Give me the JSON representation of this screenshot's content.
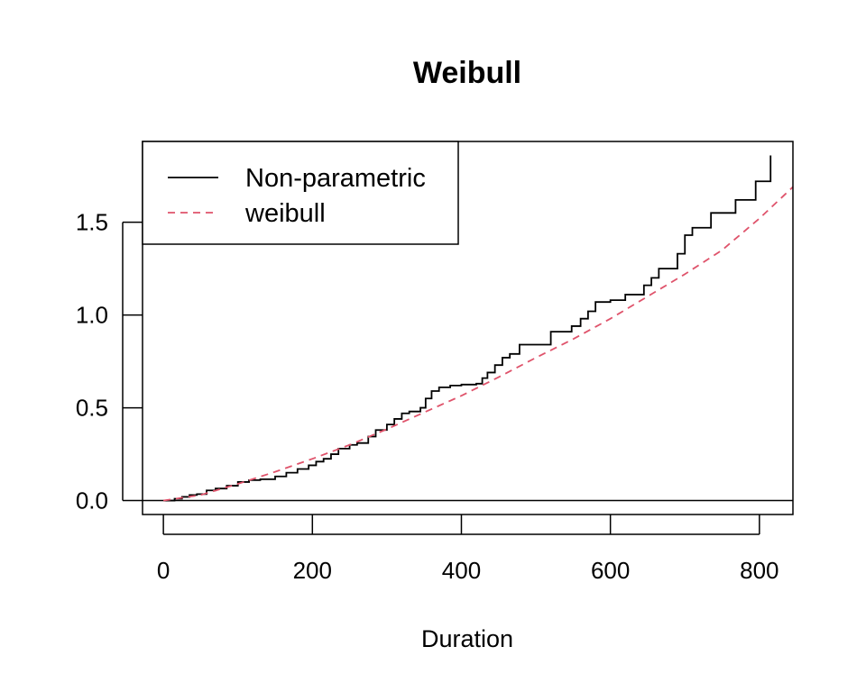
{
  "chart_data": {
    "type": "line",
    "title": "Weibull",
    "xlabel": "Duration",
    "ylabel": "",
    "xlim": [
      -28,
      845
    ],
    "ylim": [
      -0.075,
      1.935
    ],
    "x_ticks": [
      0,
      200,
      400,
      600,
      800
    ],
    "x_tick_labels": [
      "0",
      "200",
      "400",
      "600",
      "800"
    ],
    "y_ticks": [
      0.0,
      0.5,
      1.0,
      1.5
    ],
    "y_tick_labels": [
      "0.0",
      "0.5",
      "1.0",
      "1.5"
    ],
    "reference_line_y": 0,
    "legend": {
      "placement": "top-left",
      "entries": [
        "Non-parametric",
        "weibull"
      ]
    },
    "series": [
      {
        "name": "Non-parametric",
        "style": "step",
        "color": "#000000",
        "x": [
          0,
          15,
          25,
          35,
          45,
          58,
          70,
          85,
          100,
          115,
          130,
          150,
          165,
          180,
          195,
          205,
          215,
          225,
          235,
          250,
          260,
          275,
          285,
          300,
          310,
          320,
          330,
          345,
          352,
          360,
          370,
          385,
          400,
          420,
          428,
          435,
          445,
          455,
          465,
          478,
          500,
          520,
          548,
          560,
          570,
          580,
          600,
          620,
          645,
          655,
          665,
          690,
          700,
          710,
          735,
          768,
          795,
          815
        ],
        "y": [
          0,
          0.01,
          0.02,
          0.03,
          0.035,
          0.055,
          0.065,
          0.08,
          0.1,
          0.11,
          0.115,
          0.13,
          0.15,
          0.17,
          0.19,
          0.21,
          0.225,
          0.25,
          0.28,
          0.3,
          0.31,
          0.345,
          0.38,
          0.41,
          0.44,
          0.47,
          0.48,
          0.5,
          0.55,
          0.59,
          0.61,
          0.62,
          0.625,
          0.63,
          0.66,
          0.69,
          0.73,
          0.77,
          0.79,
          0.84,
          0.84,
          0.91,
          0.94,
          0.98,
          1.02,
          1.07,
          1.08,
          1.11,
          1.16,
          1.2,
          1.25,
          1.33,
          1.43,
          1.47,
          1.55,
          1.62,
          1.72,
          1.86
        ]
      },
      {
        "name": "weibull",
        "style": "dashed",
        "color": "#df536b",
        "x": [
          0,
          50,
          100,
          150,
          200,
          250,
          300,
          350,
          400,
          450,
          500,
          550,
          600,
          650,
          700,
          750,
          800,
          845
        ],
        "y": [
          0,
          0.03,
          0.09,
          0.155,
          0.225,
          0.3,
          0.385,
          0.475,
          0.565,
          0.665,
          0.77,
          0.87,
          0.98,
          1.1,
          1.22,
          1.35,
          1.52,
          1.69
        ]
      }
    ]
  }
}
